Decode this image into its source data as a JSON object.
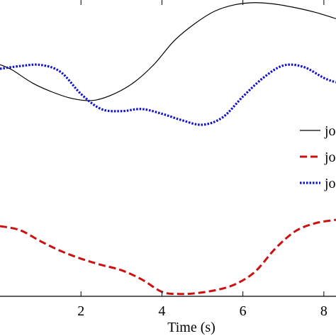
{
  "chart_data": {
    "type": "line",
    "xlabel": "Time (s)",
    "ylabel": "",
    "xlim": [
      0,
      8.3
    ],
    "ylim": [
      0,
      1
    ],
    "x_ticks": [
      2,
      4,
      6,
      8
    ],
    "grid": false,
    "legend_position": "right",
    "series": [
      {
        "name": "jo",
        "color": "#000000",
        "style": "solid",
        "x": [
          0,
          0.3,
          0.8,
          1.3,
          1.8,
          2.3,
          2.8,
          3.3,
          3.8,
          4.3,
          4.8,
          5.3,
          5.8,
          6.3,
          6.8,
          7.3,
          7.8,
          8.3
        ],
        "y": [
          0.782,
          0.764,
          0.72,
          0.689,
          0.667,
          0.661,
          0.682,
          0.721,
          0.782,
          0.862,
          0.919,
          0.962,
          0.984,
          0.991,
          0.986,
          0.974,
          0.958,
          0.937
        ]
      },
      {
        "name": "jo",
        "color": "#cc1111",
        "style": "dashed",
        "x": [
          0,
          0.5,
          1.0,
          1.5,
          2.0,
          2.5,
          3.0,
          3.5,
          4.0,
          4.4,
          4.8,
          5.3,
          5.8,
          6.3,
          6.8,
          7.3,
          7.8,
          8.3
        ],
        "y": [
          0.237,
          0.223,
          0.186,
          0.153,
          0.127,
          0.106,
          0.088,
          0.057,
          0.015,
          0.008,
          0.01,
          0.02,
          0.04,
          0.083,
          0.161,
          0.22,
          0.247,
          0.258
        ]
      },
      {
        "name": "jo",
        "color": "#1111cc",
        "style": "dotted",
        "x": [
          0,
          0.5,
          1.0,
          1.5,
          2.0,
          2.5,
          3.0,
          3.5,
          4.0,
          4.5,
          5.0,
          5.5,
          6.0,
          6.5,
          7.0,
          7.5,
          8.0,
          8.3
        ],
        "y": [
          0.768,
          0.777,
          0.781,
          0.757,
          0.683,
          0.632,
          0.625,
          0.632,
          0.616,
          0.594,
          0.579,
          0.604,
          0.674,
          0.737,
          0.779,
          0.774,
          0.737,
          0.722
        ]
      }
    ]
  }
}
